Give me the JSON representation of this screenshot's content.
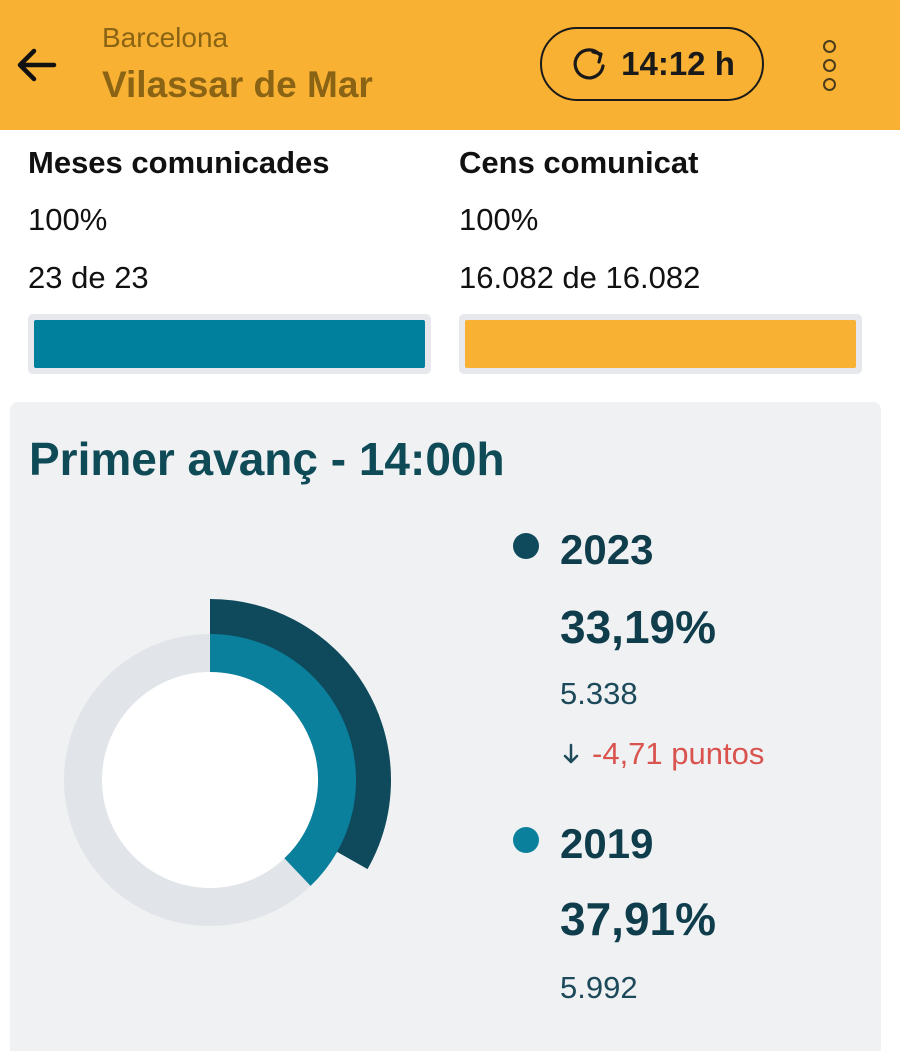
{
  "header": {
    "province": "Barcelona",
    "city": "Vilassar de Mar",
    "refresh_time": "14:12 h",
    "background_color": "#F8B133",
    "icons": {
      "back": "arrow-left-icon",
      "refresh": "refresh-icon",
      "menu": "more-vertical-icon"
    }
  },
  "stats": {
    "tables": {
      "title": "Meses comunicades",
      "percent_text": "100%",
      "count_text": "23 de 23",
      "progress_percent": 100,
      "color": "#00809D"
    },
    "census": {
      "title": "Cens comunicat",
      "percent_text": "100%",
      "count_text": "16.082 de 16.082",
      "progress_percent": 100,
      "color": "#F8B133"
    }
  },
  "turnout": {
    "title": "Primer avanç - 14:00h",
    "series": [
      {
        "year": "2023",
        "percent_text": "33,19%",
        "percent": 33.19,
        "votes": "5.338",
        "color": "#0F4A5C"
      },
      {
        "year": "2019",
        "percent_text": "37,91%",
        "percent": 37.91,
        "votes": "5.992",
        "color": "#0A809D"
      }
    ],
    "diff_text": "-4,71 puntos",
    "diff_icon": "arrow-down-icon",
    "diff_color": "#D9534F"
  }
}
